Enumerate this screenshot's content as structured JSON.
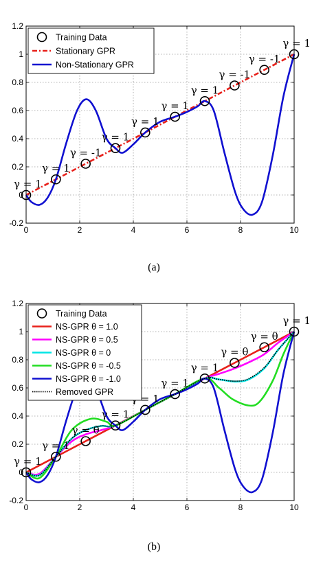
{
  "figure": {
    "caption_a": "(a)",
    "caption_b": "(b)"
  },
  "chart_data": [
    {
      "type": "line",
      "xlim": [
        0,
        10
      ],
      "ylim": [
        -0.2,
        1.2
      ],
      "x_ticks": [
        "0",
        "2",
        "4",
        "6",
        "8",
        "10"
      ],
      "y_ticks": [
        "-0.2",
        "0",
        "0.2",
        "0.4",
        "0.6",
        "0.8",
        "1",
        "1.2"
      ],
      "grid": true,
      "legend_position": "top-left",
      "training_data": {
        "name": "Training Data",
        "x": [
          0,
          1.111,
          2.222,
          3.333,
          4.444,
          5.556,
          6.667,
          7.778,
          8.889,
          10
        ],
        "y": [
          0.0,
          0.111,
          0.222,
          0.333,
          0.444,
          0.556,
          0.667,
          0.778,
          0.889,
          1.0
        ]
      },
      "series": [
        {
          "name": "Stationary GPR",
          "color": "#e8201a",
          "style": "dash-dot",
          "x": [
            0,
            1.111,
            2.222,
            3.333,
            4.444,
            5.556,
            6.667,
            7.778,
            8.889,
            10
          ],
          "y": [
            0.0,
            0.111,
            0.222,
            0.333,
            0.444,
            0.556,
            0.667,
            0.778,
            0.889,
            1.0
          ]
        },
        {
          "name": "Non-Stationary GPR",
          "color": "#1010d0",
          "style": "solid",
          "x": [
            0,
            0.2,
            0.5,
            0.8,
            1.111,
            1.5,
            1.9,
            2.25,
            2.6,
            3.0,
            3.333,
            3.6,
            4.0,
            4.444,
            5.0,
            5.556,
            6.0,
            6.4,
            6.667,
            7.0,
            7.4,
            7.8,
            8.1,
            8.45,
            8.8,
            9.2,
            9.6,
            10
          ],
          "y": [
            0.0,
            -0.05,
            -0.07,
            -0.02,
            0.111,
            0.37,
            0.6,
            0.68,
            0.6,
            0.4,
            0.333,
            0.3,
            0.36,
            0.444,
            0.52,
            0.556,
            0.59,
            0.63,
            0.667,
            0.6,
            0.3,
            0.02,
            -0.1,
            -0.14,
            -0.05,
            0.28,
            0.7,
            1.0
          ]
        }
      ],
      "annotations": [
        {
          "text": "γ = 1",
          "x": 0.0,
          "y": 0.0
        },
        {
          "text": "γ = 1",
          "x": 1.111,
          "y": 0.111
        },
        {
          "text": "γ = -1",
          "x": 2.222,
          "y": 0.222
        },
        {
          "text": "γ = 1",
          "x": 3.333,
          "y": 0.333
        },
        {
          "text": "γ = 1",
          "x": 4.444,
          "y": 0.444
        },
        {
          "text": "γ = 1",
          "x": 5.556,
          "y": 0.556
        },
        {
          "text": "γ = 1",
          "x": 6.667,
          "y": 0.667
        },
        {
          "text": "γ = -1",
          "x": 7.778,
          "y": 0.778
        },
        {
          "text": "γ = -1",
          "x": 8.889,
          "y": 0.889
        },
        {
          "text": "γ = 1",
          "x": 10.0,
          "y": 1.0
        }
      ]
    },
    {
      "type": "line",
      "xlim": [
        0,
        10
      ],
      "ylim": [
        -0.2,
        1.2
      ],
      "x_ticks": [
        "0",
        "2",
        "4",
        "6",
        "8",
        "10"
      ],
      "y_ticks": [
        "-0.2",
        "0",
        "0.2",
        "0.4",
        "0.6",
        "0.8",
        "1",
        "1.2"
      ],
      "grid": true,
      "legend_position": "top-left",
      "training_data": {
        "name": "Training Data",
        "x": [
          0,
          1.111,
          2.222,
          3.333,
          4.444,
          5.556,
          6.667,
          7.778,
          8.889,
          10
        ],
        "y": [
          0.0,
          0.111,
          0.222,
          0.333,
          0.444,
          0.556,
          0.667,
          0.778,
          0.889,
          1.0
        ]
      },
      "series": [
        {
          "name": "NS-GPR θ = 1.0",
          "color": "#e8201a",
          "style": "solid",
          "x": [
            0,
            1.111,
            2.222,
            3.333,
            4.444,
            5.556,
            6.667,
            7.778,
            8.889,
            10
          ],
          "y": [
            0.0,
            0.111,
            0.222,
            0.333,
            0.444,
            0.556,
            0.667,
            0.778,
            0.889,
            1.0
          ]
        },
        {
          "name": "NS-GPR θ = 0.5",
          "color": "#ff00ff",
          "style": "solid",
          "x": [
            0,
            0.5,
            1.111,
            1.7,
            2.222,
            2.8,
            3.333,
            4.444,
            5.556,
            6.667,
            7.2,
            7.8,
            8.4,
            8.889,
            9.4,
            10
          ],
          "y": [
            0.0,
            -0.01,
            0.111,
            0.22,
            0.27,
            0.3,
            0.333,
            0.444,
            0.556,
            0.667,
            0.7,
            0.74,
            0.79,
            0.84,
            0.92,
            1.0
          ]
        },
        {
          "name": "NS-GPR θ = 0",
          "color": "#00e5e5",
          "style": "solid",
          "x": [
            0,
            0.5,
            1.111,
            1.7,
            2.222,
            2.8,
            3.333,
            4.444,
            5.556,
            6.667,
            7.2,
            7.8,
            8.3,
            8.889,
            9.4,
            10
          ],
          "y": [
            0.0,
            -0.02,
            0.111,
            0.24,
            0.3,
            0.33,
            0.333,
            0.444,
            0.556,
            0.667,
            0.66,
            0.645,
            0.66,
            0.74,
            0.87,
            1.0
          ]
        },
        {
          "name": "NS-GPR θ = -0.5",
          "color": "#22dd22",
          "style": "solid",
          "x": [
            0,
            0.5,
            1.111,
            1.7,
            2.4,
            3.0,
            3.333,
            4.444,
            5.556,
            6.667,
            7.2,
            7.7,
            8.3,
            8.7,
            9.2,
            9.6,
            10
          ],
          "y": [
            0.0,
            -0.04,
            0.111,
            0.3,
            0.38,
            0.36,
            0.333,
            0.444,
            0.556,
            0.667,
            0.6,
            0.52,
            0.475,
            0.5,
            0.65,
            0.84,
            1.0
          ]
        },
        {
          "name": "NS-GPR θ = -1.0",
          "color": "#1010d0",
          "style": "solid",
          "x": [
            0,
            0.2,
            0.5,
            0.8,
            1.111,
            1.5,
            1.9,
            2.25,
            2.6,
            3.0,
            3.333,
            3.6,
            4.0,
            4.444,
            5.0,
            5.556,
            6.0,
            6.4,
            6.667,
            7.0,
            7.4,
            7.8,
            8.1,
            8.45,
            8.8,
            9.2,
            9.6,
            10
          ],
          "y": [
            0.0,
            -0.05,
            -0.07,
            -0.02,
            0.111,
            0.37,
            0.6,
            0.68,
            0.6,
            0.4,
            0.333,
            0.3,
            0.36,
            0.444,
            0.52,
            0.556,
            0.59,
            0.63,
            0.667,
            0.6,
            0.3,
            0.02,
            -0.1,
            -0.14,
            -0.05,
            0.28,
            0.7,
            1.0
          ]
        },
        {
          "name": "Removed GPR",
          "color": "#000000",
          "style": "dotted",
          "x": [
            0,
            0.5,
            1.111,
            1.7,
            2.222,
            2.8,
            3.333,
            4.444,
            5.556,
            6.667,
            7.2,
            7.8,
            8.3,
            8.889,
            9.4,
            10
          ],
          "y": [
            0.0,
            -0.02,
            0.111,
            0.24,
            0.3,
            0.33,
            0.333,
            0.444,
            0.556,
            0.667,
            0.66,
            0.648,
            0.665,
            0.745,
            0.87,
            1.0
          ]
        }
      ],
      "annotations": [
        {
          "text": "γ = 1",
          "x": 0.0,
          "y": 0.0
        },
        {
          "text": "γ = 1",
          "x": 1.111,
          "y": 0.111
        },
        {
          "text": "γ = θ",
          "x": 2.222,
          "y": 0.222
        },
        {
          "text": "γ = 1",
          "x": 3.333,
          "y": 0.333
        },
        {
          "text": "γ = 1",
          "x": 4.444,
          "y": 0.444
        },
        {
          "text": "γ = 1",
          "x": 5.556,
          "y": 0.556
        },
        {
          "text": "γ = 1",
          "x": 6.667,
          "y": 0.667
        },
        {
          "text": "γ = θ",
          "x": 7.778,
          "y": 0.778
        },
        {
          "text": "γ = θ",
          "x": 8.889,
          "y": 0.889
        },
        {
          "text": "γ = 1",
          "x": 10.0,
          "y": 1.0
        }
      ]
    }
  ]
}
